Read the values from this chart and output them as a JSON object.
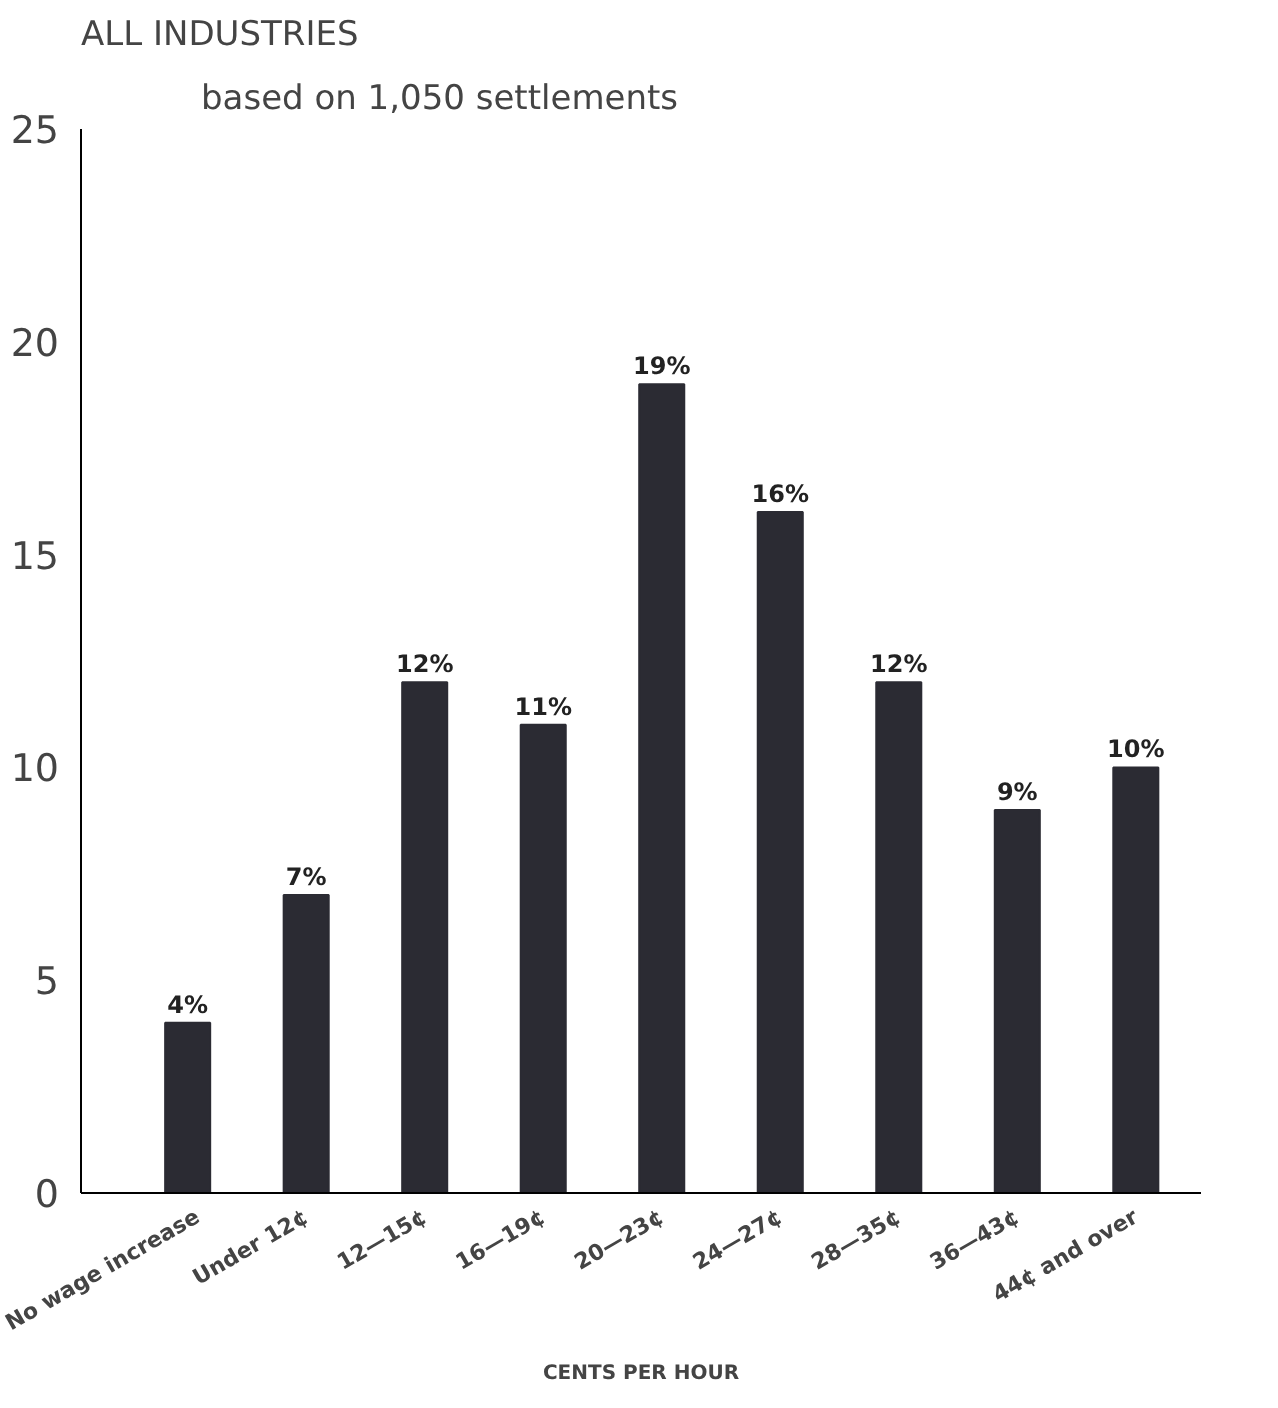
{
  "chart_data": {
    "type": "bar",
    "title": "ALL INDUSTRIES",
    "subtitle": "based on 1,050 settlements",
    "xlabel": "CENTS PER HOUR",
    "categories": [
      "No wage increase",
      "Under 12¢",
      "12—15¢",
      "16—19¢",
      "20—23¢",
      "24—27¢",
      "28—35¢",
      "36—43¢",
      "44¢ and over"
    ],
    "values": [
      4,
      7,
      12,
      11,
      19,
      16,
      12,
      9,
      10
    ],
    "value_labels": [
      "4%",
      "7%",
      "12%",
      "11%",
      "19%",
      "16%",
      "12%",
      "9%",
      "10%"
    ],
    "color": "#2b2b33",
    "ylim": [
      0,
      25
    ],
    "yticks": [
      0,
      5,
      10,
      15,
      20,
      25
    ],
    "grid": false
  }
}
